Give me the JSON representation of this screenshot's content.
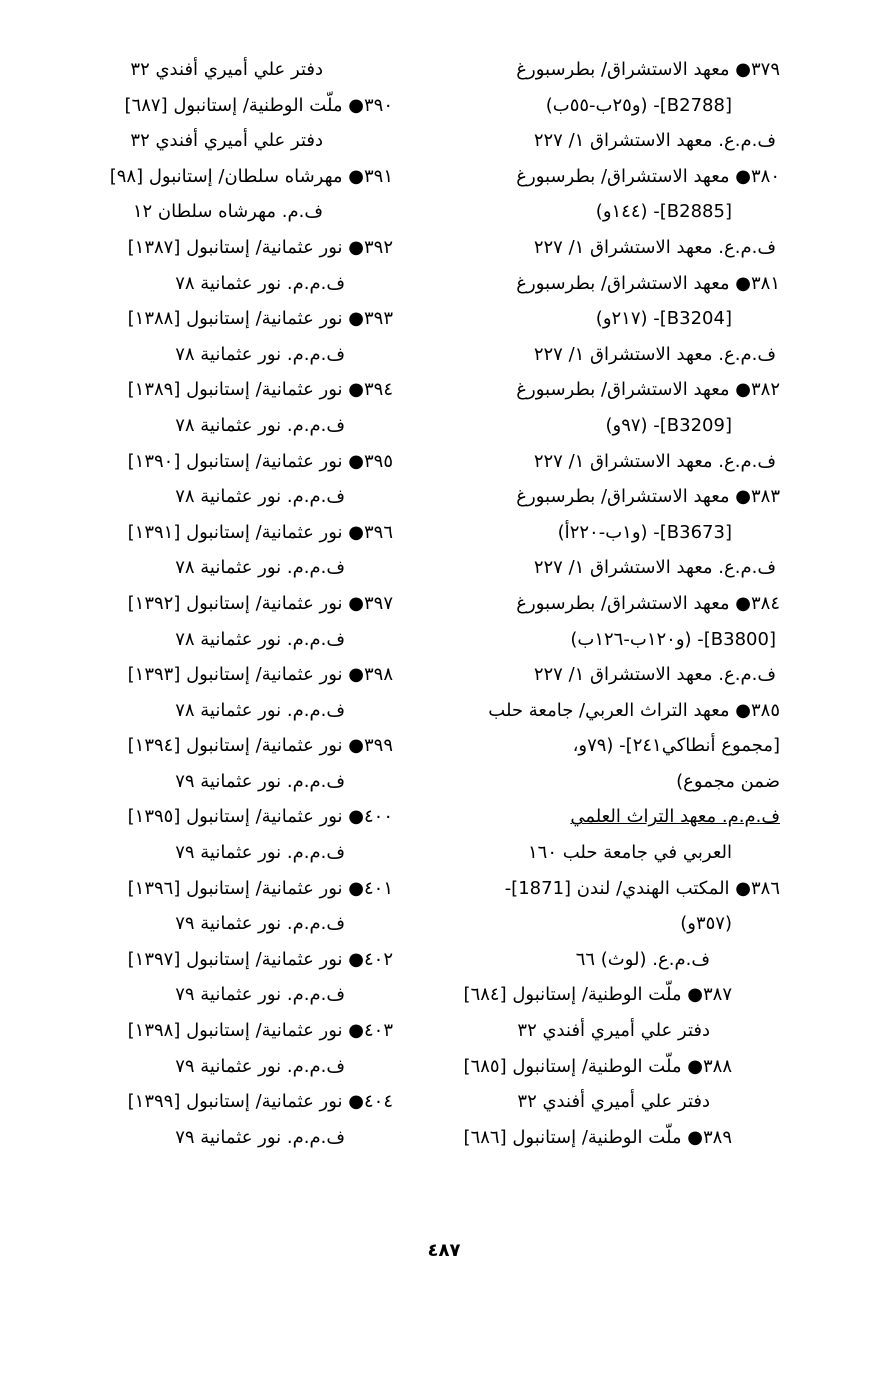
{
  "right_column": [
    {
      "text": "٣٧٩● معهد الاستشراق/ بطرسبورغ",
      "indent": 0
    },
    {
      "text": "[B2788]- (و٢٥ب-٥٥ب)",
      "indent": 2
    },
    {
      "text": "ف.م.ع. معهد الاستشراق ١/ ٢٢٧",
      "indent": 1
    },
    {
      "text": "٣٨٠● معهد الاستشراق/ بطرسبورغ",
      "indent": 0
    },
    {
      "text": "[B2885]- (١٤٤و)",
      "indent": 2
    },
    {
      "text": "ف.م.ع. معهد الاستشراق ١/ ٢٢٧",
      "indent": 1
    },
    {
      "text": "٣٨١● معهد الاستشراق/ بطرسبورغ",
      "indent": 0
    },
    {
      "text": "[B3204]- (٢١٧و)",
      "indent": 2
    },
    {
      "text": "ف.م.ع. معهد الاستشراق ١/ ٢٢٧",
      "indent": 1
    },
    {
      "text": "٣٨٢● معهد الاستشراق/ بطرسبورغ",
      "indent": 0
    },
    {
      "text": "[B3209]- (٩٧و)",
      "indent": 2
    },
    {
      "text": "ف.م.ع. معهد الاستشراق ١/ ٢٢٧",
      "indent": 1
    },
    {
      "text": "٣٨٣● معهد الاستشراق/ بطرسبورغ",
      "indent": 0
    },
    {
      "text": "[B3673]- (و١ب-٢٢٠أ)",
      "indent": 2
    },
    {
      "text": "ف.م.ع. معهد الاستشراق ١/ ٢٢٧",
      "indent": 1
    },
    {
      "text": "٣٨٤● معهد الاستشراق/ بطرسبورغ",
      "indent": 0
    },
    {
      "text": "[B3800]- (و١٢٠ب-١٢٦ب)",
      "indent": 1
    },
    {
      "text": "ف.م.ع. معهد الاستشراق ١/ ٢٢٧",
      "indent": 1
    },
    {
      "text": "٣٨٥● معهد التراث العربي/ جامعة حلب",
      "indent": 0
    },
    {
      "text": "[مجموع أنطاكي٢٤١]- (٧٩و،",
      "indent": 0
    },
    {
      "text": "ضمن مجموع)",
      "indent": 0
    },
    {
      "text": "ف.م.م. معهد التراث العلمي",
      "indent": 0,
      "underline": true
    },
    {
      "text": "العربي في جامعة حلب ١٦٠",
      "indent": 2
    },
    {
      "text": "٣٨٦● المكتب الهندي/ لندن [1871]-",
      "indent": 0
    },
    {
      "text": "(٣٥٧و)",
      "indent": 2
    },
    {
      "text": "ف.م.ع. (لوث) ٦٦",
      "indent": 3
    },
    {
      "text": "٣٨٧● ملّت الوطنية/ إستانبول [٦٨٤]",
      "indent": 2
    },
    {
      "text": "دفتر علي أميري أفندي ٣٢",
      "indent": 3
    },
    {
      "text": "٣٨٨● ملّت الوطنية/ إستانبول [٦٨٥]",
      "indent": 2
    },
    {
      "text": "دفتر علي أميري أفندي ٣٢",
      "indent": 3
    },
    {
      "text": "٣٨٩● ملّت الوطنية/ إستانبول [٦٨٦]",
      "indent": 2
    }
  ],
  "left_column": [
    {
      "text": "دفتر علي أميري أفندي ٣٢",
      "indent": 3
    },
    {
      "text": "٣٩٠● ملّت الوطنية/ إستانبول [٦٨٧]",
      "indent": 0
    },
    {
      "text": "دفتر علي أميري أفندي ٣٢",
      "indent": 3
    },
    {
      "text": "٣٩١● مهرشاه سلطان/ إستانبول [٩٨]",
      "indent": 0
    },
    {
      "text": "ف.م. مهرشاه سلطان ١٢",
      "indent": 3
    },
    {
      "text": "٣٩٢● نور عثمانية/ إستانبول [١٣٨٧]",
      "indent": 0
    },
    {
      "text": "ف.م.م. نور عثمانية ٧٨",
      "indent": 2
    },
    {
      "text": "٣٩٣● نور عثمانية/ إستانبول [١٣٨٨]",
      "indent": 0
    },
    {
      "text": "ف.م.م. نور عثمانية ٧٨",
      "indent": 2
    },
    {
      "text": "٣٩٤● نور عثمانية/ إستانبول [١٣٨٩]",
      "indent": 0
    },
    {
      "text": "ف.م.م. نور عثمانية ٧٨",
      "indent": 2
    },
    {
      "text": "٣٩٥● نور عثمانية/ إستانبول [١٣٩٠]",
      "indent": 0
    },
    {
      "text": "ف.م.م. نور عثمانية ٧٨",
      "indent": 2
    },
    {
      "text": "٣٩٦● نور عثمانية/ إستانبول [١٣٩١]",
      "indent": 0
    },
    {
      "text": "ف.م.م. نور عثمانية ٧٨",
      "indent": 2
    },
    {
      "text": "٣٩٧● نور عثمانية/ إستانبول [١٣٩٢]",
      "indent": 0
    },
    {
      "text": "ف.م.م. نور عثمانية ٧٨",
      "indent": 2
    },
    {
      "text": "٣٩٨● نور عثمانية/ إستانبول [١٣٩٣]",
      "indent": 0
    },
    {
      "text": "ف.م.م. نور عثمانية ٧٨",
      "indent": 2
    },
    {
      "text": "٣٩٩● نور عثمانية/ إستانبول [١٣٩٤]",
      "indent": 0
    },
    {
      "text": "ف.م.م. نور عثمانية ٧٩",
      "indent": 2
    },
    {
      "text": "٤٠٠● نور عثمانية/ إستانبول [١٣٩٥]",
      "indent": 0
    },
    {
      "text": "ف.م.م. نور عثمانية ٧٩",
      "indent": 2
    },
    {
      "text": "٤٠١● نور عثمانية/ إستانبول [١٣٩٦]",
      "indent": 0
    },
    {
      "text": "ف.م.م. نور عثمانية ٧٩",
      "indent": 2
    },
    {
      "text": "٤٠٢● نور عثمانية/ إستانبول [١٣٩٧]",
      "indent": 0
    },
    {
      "text": "ف.م.م. نور عثمانية ٧٩",
      "indent": 2
    },
    {
      "text": "٤٠٣● نور عثمانية/ إستانبول [١٣٩٨]",
      "indent": 0
    },
    {
      "text": "ف.م.م. نور عثمانية ٧٩",
      "indent": 2
    },
    {
      "text": "٤٠٤● نور عثمانية/ إستانبول [١٣٩٩]",
      "indent": 0
    },
    {
      "text": "ف.م.م. نور عثمانية ٧٩",
      "indent": 2
    }
  ],
  "page_number": "٤٨٧"
}
